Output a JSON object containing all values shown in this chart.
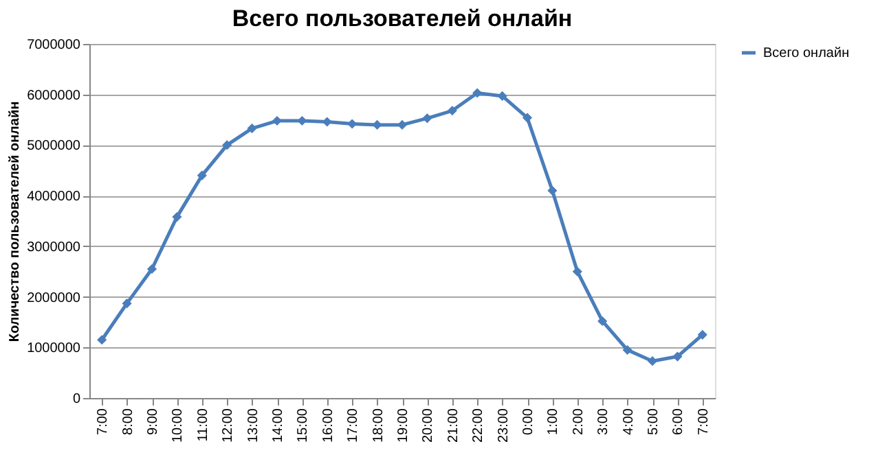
{
  "chart_data": {
    "type": "line",
    "title": "Всего пользователей онлайн",
    "ylabel": "Количество пользователей онлайн",
    "categories": [
      "7:00",
      "8:00",
      "9:00",
      "10:00",
      "11:00",
      "12:00",
      "13:00",
      "14:00",
      "15:00",
      "16:00",
      "17:00",
      "18:00",
      "19:00",
      "20:00",
      "21:00",
      "22:00",
      "23:00",
      "0:00",
      "1:00",
      "2:00",
      "3:00",
      "4:00",
      "5:00",
      "6:00",
      "7:00"
    ],
    "series": [
      {
        "name": "Всего онлайн",
        "color": "#4a7ebb",
        "values": [
          1150000,
          1870000,
          2550000,
          3580000,
          4400000,
          5000000,
          5330000,
          5480000,
          5480000,
          5460000,
          5420000,
          5400000,
          5400000,
          5530000,
          5680000,
          6030000,
          5970000,
          5540000,
          4100000,
          2500000,
          1520000,
          950000,
          730000,
          820000,
          1250000
        ]
      }
    ],
    "ylim": [
      0,
      7000000
    ],
    "yticks": [
      0,
      1000000,
      2000000,
      3000000,
      4000000,
      5000000,
      6000000,
      7000000
    ],
    "grid": "y",
    "legend": "right",
    "marker": "diamond",
    "line_style": "solid"
  }
}
